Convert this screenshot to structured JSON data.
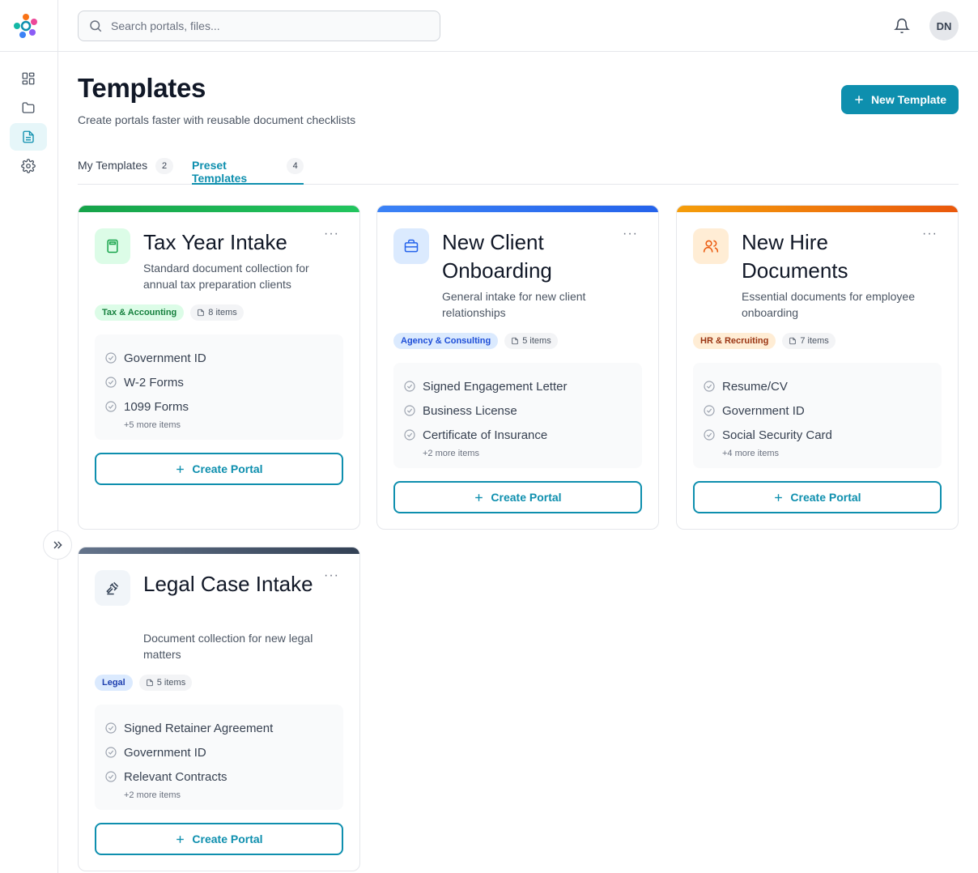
{
  "header": {
    "search_placeholder": "Search portals, files...",
    "avatar_initials": "DN"
  },
  "page": {
    "title": "Templates",
    "subtitle": "Create portals faster with reusable document checklists",
    "new_template_label": "New Template"
  },
  "tabs": [
    {
      "label": "My Templates",
      "count": "2"
    },
    {
      "label": "Preset Templates",
      "count": "4"
    }
  ],
  "cards": [
    {
      "title": "Tax Year Intake",
      "description": "Standard document collection for annual tax preparation clients",
      "category": "Tax & Accounting",
      "items_count": "8 items",
      "items": [
        "Government ID",
        "W-2 Forms",
        "1099 Forms"
      ],
      "more_items": "+5 more items",
      "create_label": "Create Portal",
      "accent": "#22c55e",
      "icon": "calculator-icon"
    },
    {
      "title": "New Client Onboarding",
      "description": "General intake for new client relationships",
      "category": "Agency & Consulting",
      "items_count": "5 items",
      "items": [
        "Signed Engagement Letter",
        "Business License",
        "Certificate of Insurance"
      ],
      "more_items": "+2 more items",
      "create_label": "Create Portal",
      "accent": "#3b82f6",
      "icon": "briefcase-icon"
    },
    {
      "title": "New Hire Documents",
      "description": "Essential documents for employee onboarding",
      "category": "HR & Recruiting",
      "items_count": "7 items",
      "items": [
        "Resume/CV",
        "Government ID",
        "Social Security Card"
      ],
      "more_items": "+4 more items",
      "create_label": "Create Portal",
      "accent": "#f97316",
      "icon": "users-icon"
    },
    {
      "title": "Legal Case Intake",
      "description": "Document collection for new legal matters",
      "category": "Legal",
      "items_count": "5 items",
      "items": [
        "Signed Retainer Agreement",
        "Government ID",
        "Relevant Contracts"
      ],
      "more_items": "+2 more items",
      "create_label": "Create Portal",
      "accent": "#475569",
      "icon": "gavel-icon"
    }
  ]
}
